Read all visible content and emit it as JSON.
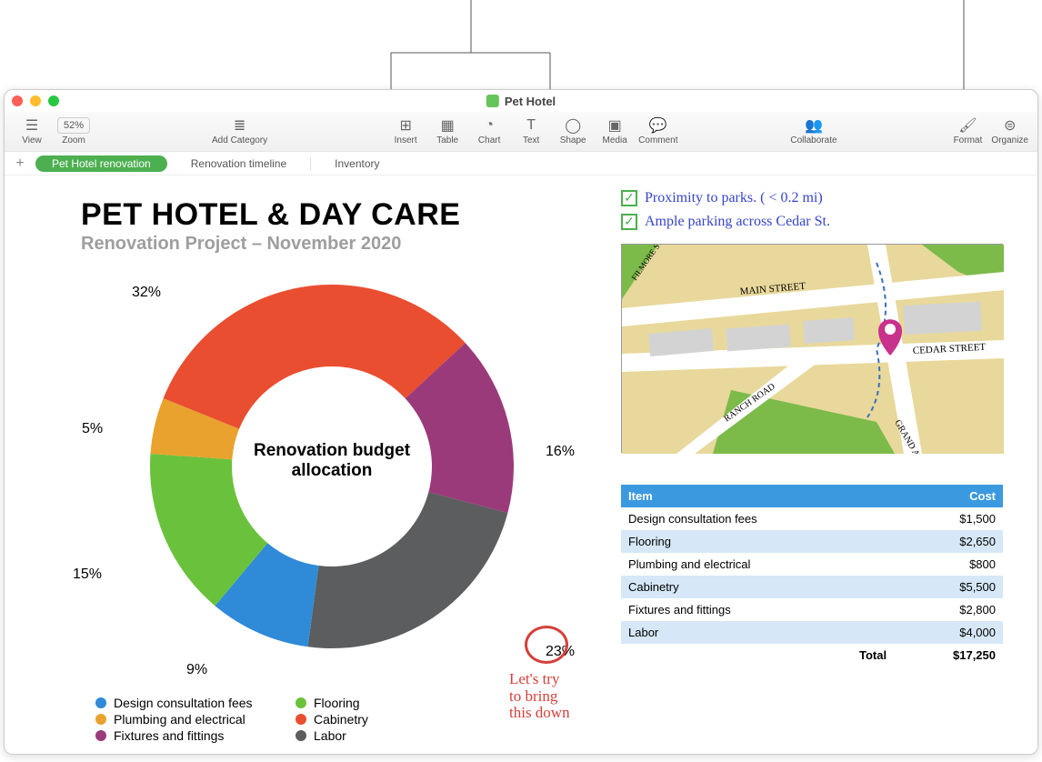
{
  "window": {
    "title": "Pet Hotel"
  },
  "traffic_colors": {
    "close": "#ff5f57",
    "minimize": "#febc2e",
    "maximize": "#28c840"
  },
  "toolbar": {
    "view": "View",
    "zoom_value": "52%",
    "zoom_label": "Zoom",
    "add_category": "Add Category",
    "insert": "Insert",
    "table": "Table",
    "chart": "Chart",
    "text": "Text",
    "shape": "Shape",
    "media": "Media",
    "comment": "Comment",
    "collaborate": "Collaborate",
    "format": "Format",
    "organize": "Organize"
  },
  "sheets": {
    "active": "Pet Hotel renovation",
    "tab2": "Renovation timeline",
    "tab3": "Inventory"
  },
  "heading": {
    "title": "PET HOTEL & DAY CARE",
    "subtitle": "Renovation Project – November 2020"
  },
  "notes": {
    "line1": "Proximity to parks. ( < 0.2 mi)",
    "line2": "Ample parking across  Cedar St."
  },
  "map_labels": {
    "filmore": "FILMORE ST.",
    "main": "MAIN STREET",
    "cedar": "CEDAR STREET",
    "ranch": "RANCH ROAD",
    "grand": "GRAND AVENUE"
  },
  "chart": {
    "type": "donut",
    "center_label": "Renovation budget allocation",
    "background_color": "#ffffff",
    "inner_radius_ratio": 0.55,
    "slices": [
      {
        "label": "Cabinetry",
        "value": 32,
        "color": "#e94e30"
      },
      {
        "label": "Fixtures and fittings",
        "value": 16,
        "color": "#9b3a7a"
      },
      {
        "label": "Labor",
        "value": 23,
        "color": "#5b5d5e"
      },
      {
        "label": "Design consultation fees",
        "value": 9,
        "color": "#2f8ad8"
      },
      {
        "label": "Flooring",
        "value": 15,
        "color": "#6ac23c"
      },
      {
        "label": "Plumbing and electrical",
        "value": 5,
        "color": "#e8a22d"
      }
    ],
    "pct_labels": {
      "p32": "32%",
      "p16": "16%",
      "p23": "23%",
      "p9": "9%",
      "p15": "15%",
      "p5": "5%"
    }
  },
  "legend": {
    "i0": "Design consultation fees",
    "i1": "Flooring",
    "i2": "Plumbing and electrical",
    "i3": "Cabinetry",
    "i4": "Fixtures and fittings",
    "i5": "Labor"
  },
  "legend_colors": {
    "i0": "#2f8ad8",
    "i1": "#6ac23c",
    "i2": "#e8a22d",
    "i3": "#e94e30",
    "i4": "#9b3a7a",
    "i5": "#5b5d5e"
  },
  "annotation": {
    "circled_value": "23%",
    "text_l1": "Let's try",
    "text_l2": "to bring",
    "text_l3": "this down"
  },
  "cost_table": {
    "header_item": "Item",
    "header_cost": "Cost",
    "header_bg": "#3b99e0",
    "alt_row_bg": "#d6e8f7",
    "rows": [
      {
        "item": "Design consultation fees",
        "cost": "$1,500"
      },
      {
        "item": "Flooring",
        "cost": "$2,650"
      },
      {
        "item": "Plumbing and electrical",
        "cost": "$800"
      },
      {
        "item": "Cabinetry",
        "cost": "$5,500"
      },
      {
        "item": "Fixtures and fittings",
        "cost": "$2,800"
      },
      {
        "item": "Labor",
        "cost": "$4,000"
      }
    ],
    "total_label": "Total",
    "total_value": "$17,250"
  }
}
